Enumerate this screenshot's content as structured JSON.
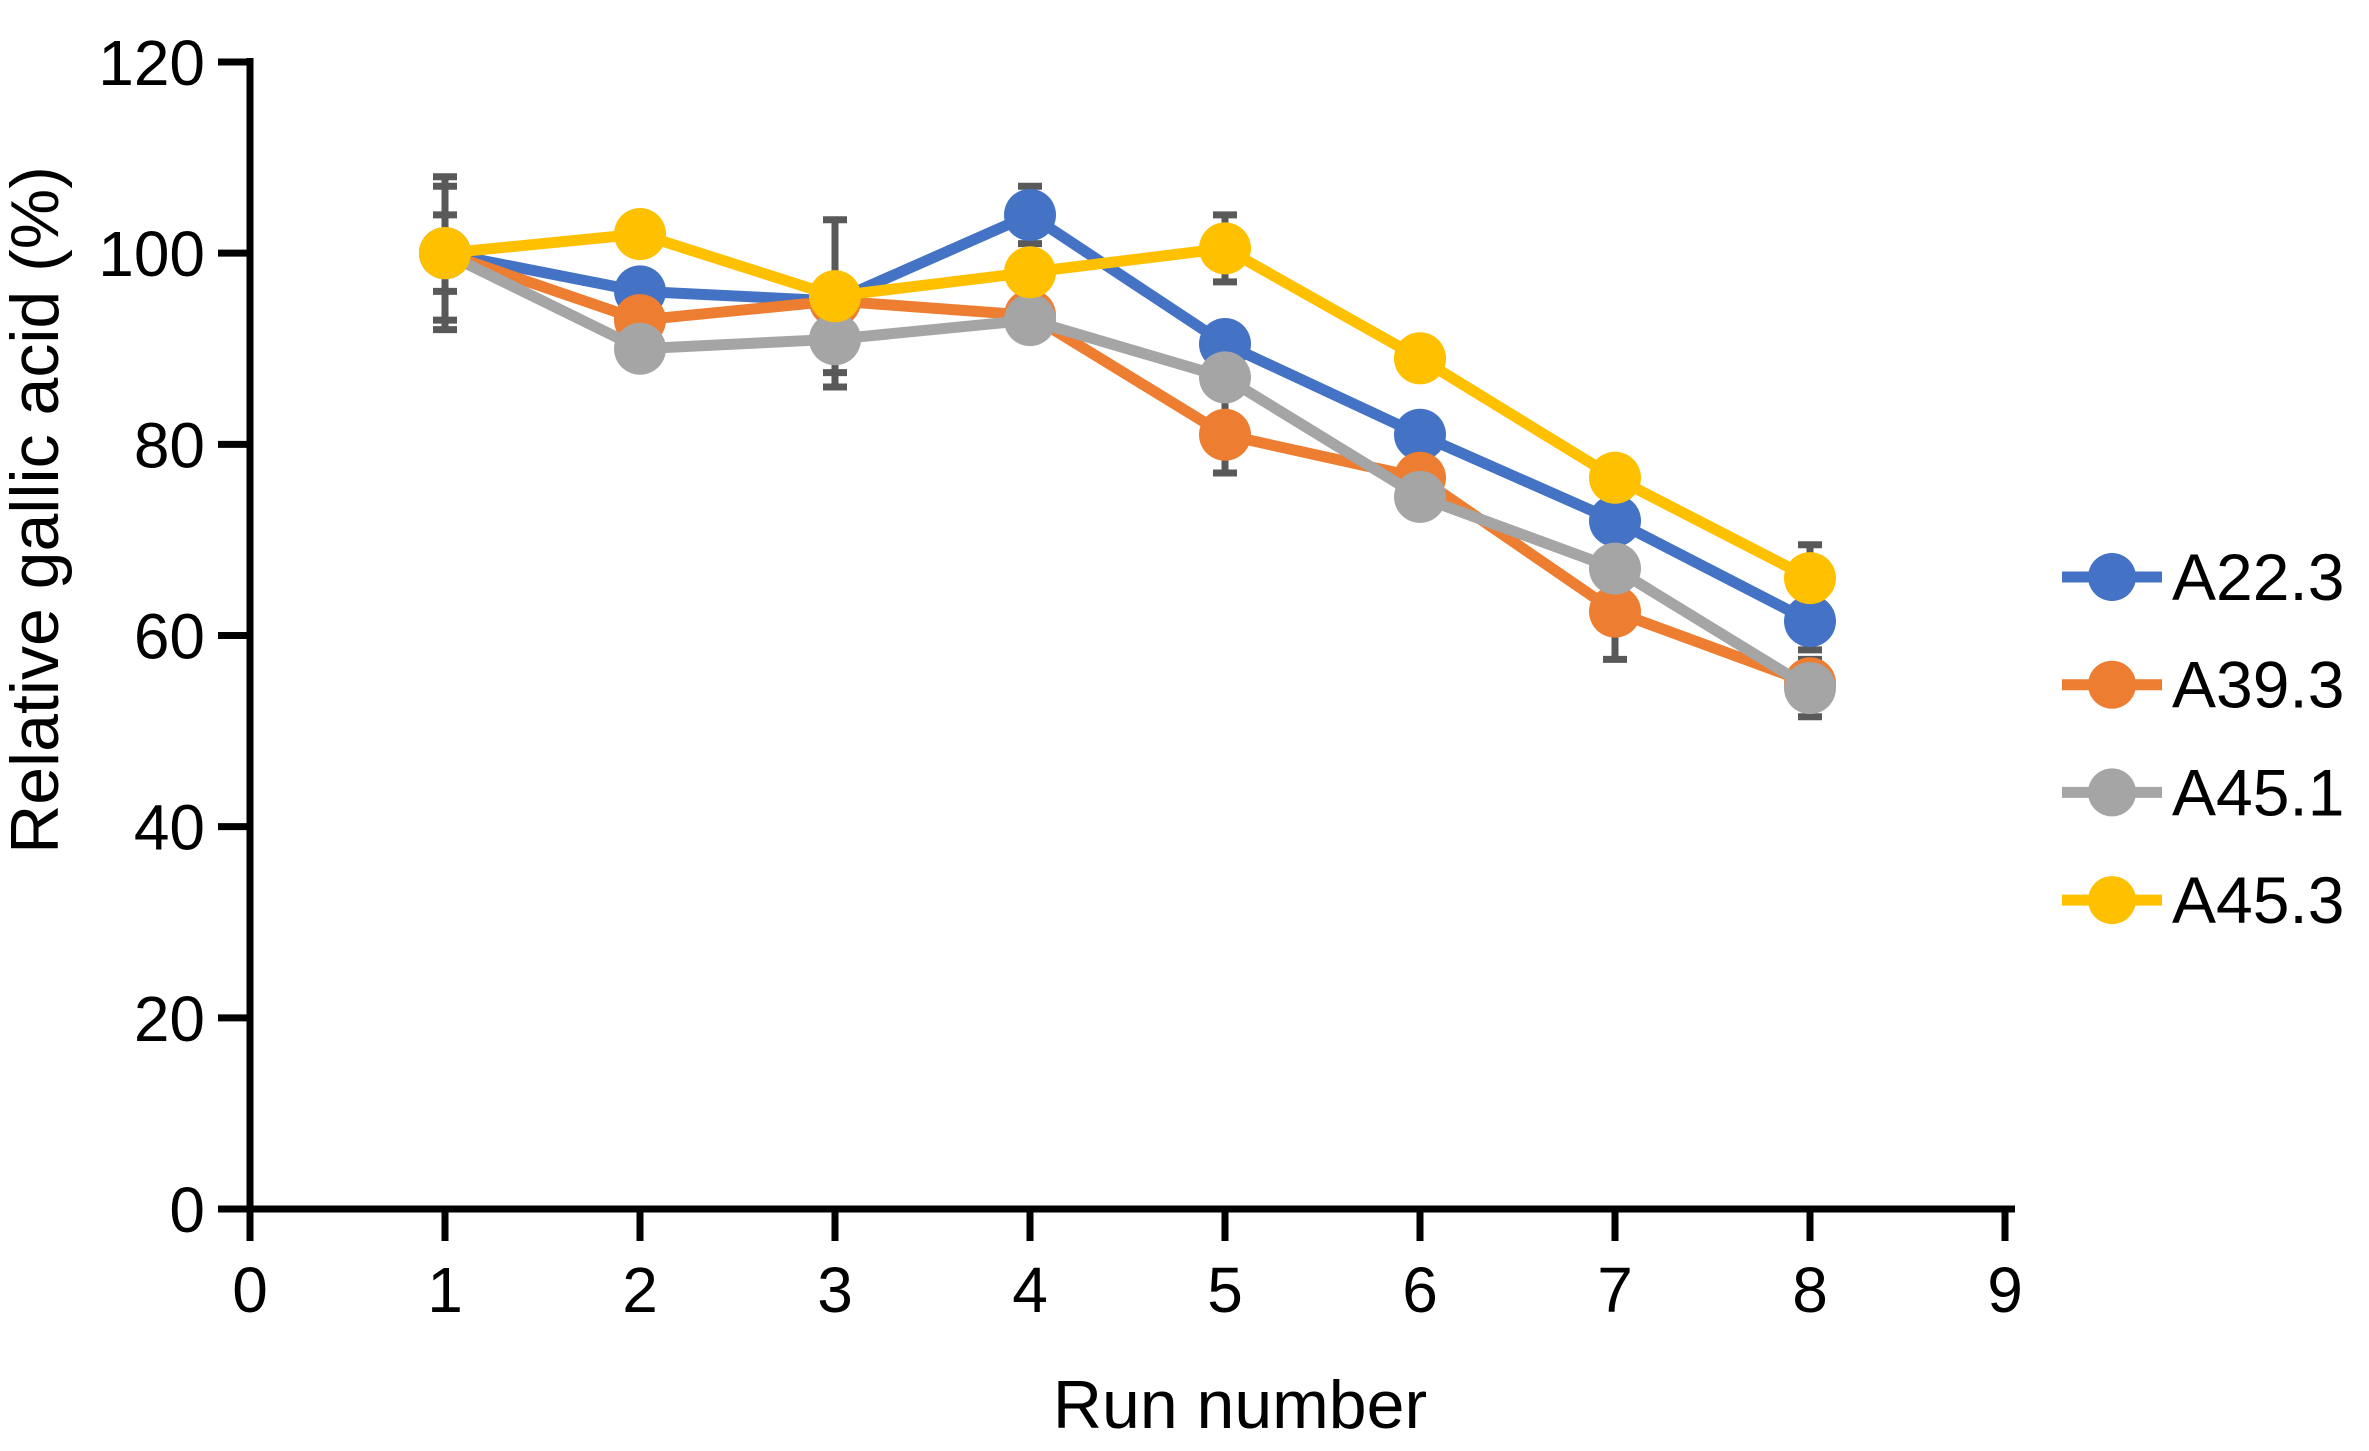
{
  "figure": {
    "background_color": "#FFFFFF",
    "text_color": "#000000"
  },
  "chart_data": {
    "type": "line",
    "title": "",
    "xlabel": "Run number",
    "ylabel": "Relative gallic acid (%)",
    "x": [
      1,
      2,
      3,
      4,
      5,
      6,
      7,
      8
    ],
    "xlim": [
      0,
      9
    ],
    "ylim": [
      0,
      120
    ],
    "x_ticks": [
      0,
      1,
      2,
      3,
      4,
      5,
      6,
      7,
      8,
      9
    ],
    "y_ticks": [
      0,
      20,
      40,
      60,
      80,
      100,
      120
    ],
    "grid": false,
    "legend_position": "right",
    "axis_color": "#000000",
    "error_bar_color": "#595959",
    "marker_style": "circle",
    "series": [
      {
        "name": "A22.3",
        "color": "#4472C4",
        "values": [
          100,
          96,
          95,
          104,
          90.5,
          81,
          72,
          61.5
        ],
        "errors": [
          8,
          0,
          0,
          3,
          0,
          0,
          0,
          3
        ]
      },
      {
        "name": "A39.3",
        "color": "#ED7D31",
        "values": [
          100,
          93,
          95,
          93.5,
          81,
          76.5,
          62.5,
          55
        ],
        "errors": [
          7,
          0,
          0,
          0,
          4,
          0,
          5,
          0
        ]
      },
      {
        "name": "A45.1",
        "color": "#A5A5A5",
        "values": [
          100,
          90,
          91,
          93,
          87,
          74.5,
          67,
          54.5
        ],
        "errors": [
          0,
          0,
          5,
          0,
          0,
          0,
          0,
          3
        ]
      },
      {
        "name": "A45.3",
        "color": "#FFC000",
        "values": [
          100,
          102,
          95.5,
          98,
          100.5,
          89,
          76.5,
          66
        ],
        "errors": [
          4,
          2,
          8,
          0,
          3.5,
          0,
          2,
          3.5
        ]
      }
    ]
  }
}
